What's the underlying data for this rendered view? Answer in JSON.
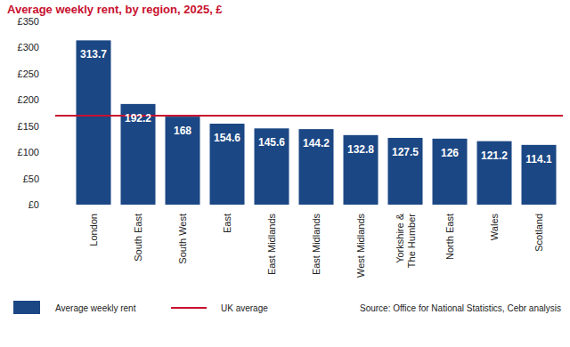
{
  "chart_data": {
    "type": "bar",
    "title": "Average weekly rent, by region, 2025, £",
    "categories": [
      "London",
      "South East",
      "South West",
      "East",
      "East Midlands",
      "East Midlands",
      "West Midlands",
      "Yorkshire & The Humber",
      "North East",
      "Wales",
      "Scotland"
    ],
    "series": [
      {
        "name": "Average weekly rent",
        "color": "#1b4784",
        "values": [
          313.7,
          192.2,
          168,
          154.6,
          145.6,
          144.2,
          132.8,
          127.5,
          126,
          121.2,
          114.1
        ]
      }
    ],
    "average_line": {
      "name": "UK average",
      "value": 170,
      "color": "#c8102e"
    },
    "ylim": [
      0,
      350
    ],
    "yticks": [
      {
        "value": 0,
        "label": "£0"
      },
      {
        "value": 50,
        "label": "£50"
      },
      {
        "value": 100,
        "label": "£100"
      },
      {
        "value": 150,
        "label": "£150"
      },
      {
        "value": 200,
        "label": "£200"
      },
      {
        "value": 250,
        "label": "£250"
      },
      {
        "value": 300,
        "label": "£300"
      },
      {
        "value": 350,
        "label": "£350"
      }
    ],
    "grid": false,
    "data_labels": true,
    "legend": "bottom",
    "source": "Source: Office for National Statistics, Cebr analysis"
  }
}
